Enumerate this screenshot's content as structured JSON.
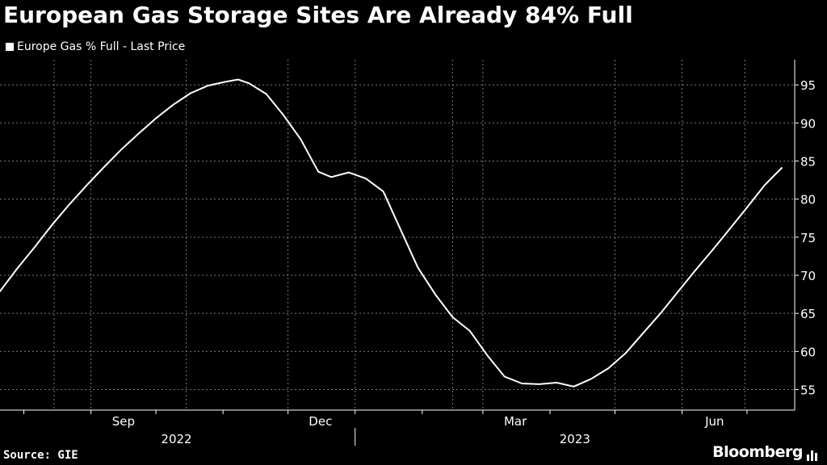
{
  "title": "European Gas Storage Sites Are Already 84% Full",
  "source": "Source: GIE",
  "brand": "Bloomberg",
  "colors": {
    "background": "#000000",
    "line": "#ffffff",
    "grid": "#7a7a7a",
    "text": "#ffffff"
  },
  "chart_data": {
    "type": "line",
    "title": "European Gas Storage Sites Are Already 84% Full",
    "xlabel": "",
    "ylabel": "",
    "x_ticks": [
      "Sep",
      "Dec",
      "Mar",
      "Jun"
    ],
    "x_groups": [
      "2022",
      "2023"
    ],
    "y_ticks": [
      55,
      60,
      65,
      70,
      75,
      80,
      85,
      90,
      95
    ],
    "ylim": [
      52.3,
      98.3
    ],
    "xlim": [
      "2022-07-21",
      "2023-07-23"
    ],
    "y_axis_side": "right",
    "grid": true,
    "legend": "top-left",
    "series": [
      {
        "name": "Europe Gas % Full - Last Price",
        "points": [
          [
            "2022-07-21",
            67.9
          ],
          [
            "2022-07-29",
            70.9
          ],
          [
            "2022-08-06",
            73.7
          ],
          [
            "2022-08-14",
            76.6
          ],
          [
            "2022-08-22",
            79.3
          ],
          [
            "2022-08-30",
            81.8
          ],
          [
            "2022-09-07",
            84.2
          ],
          [
            "2022-09-15",
            86.5
          ],
          [
            "2022-09-23",
            88.6
          ],
          [
            "2022-10-01",
            90.6
          ],
          [
            "2022-10-09",
            92.4
          ],
          [
            "2022-10-17",
            93.9
          ],
          [
            "2022-10-25",
            94.9
          ],
          [
            "2022-11-02",
            95.4
          ],
          [
            "2022-11-08",
            95.7
          ],
          [
            "2022-11-13",
            95.2
          ],
          [
            "2022-11-21",
            93.8
          ],
          [
            "2022-11-29",
            91.0
          ],
          [
            "2022-12-07",
            87.8
          ],
          [
            "2022-12-15",
            83.6
          ],
          [
            "2022-12-21",
            82.9
          ],
          [
            "2022-12-29",
            83.5
          ],
          [
            "2023-01-06",
            82.7
          ],
          [
            "2023-01-14",
            81.0
          ],
          [
            "2023-01-22",
            76.0
          ],
          [
            "2023-01-30",
            71.0
          ],
          [
            "2023-02-07",
            67.5
          ],
          [
            "2023-02-15",
            64.5
          ],
          [
            "2023-02-23",
            62.7
          ],
          [
            "2023-03-03",
            59.5
          ],
          [
            "2023-03-11",
            56.7
          ],
          [
            "2023-03-19",
            55.8
          ],
          [
            "2023-03-27",
            55.7
          ],
          [
            "2023-04-04",
            55.9
          ],
          [
            "2023-04-12",
            55.4
          ],
          [
            "2023-04-20",
            56.4
          ],
          [
            "2023-04-28",
            57.8
          ],
          [
            "2023-05-06",
            59.8
          ],
          [
            "2023-05-14",
            62.4
          ],
          [
            "2023-05-22",
            65.0
          ],
          [
            "2023-05-30",
            67.8
          ],
          [
            "2023-06-07",
            70.6
          ],
          [
            "2023-06-15",
            73.3
          ],
          [
            "2023-06-23",
            76.1
          ],
          [
            "2023-07-01",
            78.9
          ],
          [
            "2023-07-09",
            81.8
          ],
          [
            "2023-07-17",
            84.1
          ]
        ]
      }
    ]
  }
}
